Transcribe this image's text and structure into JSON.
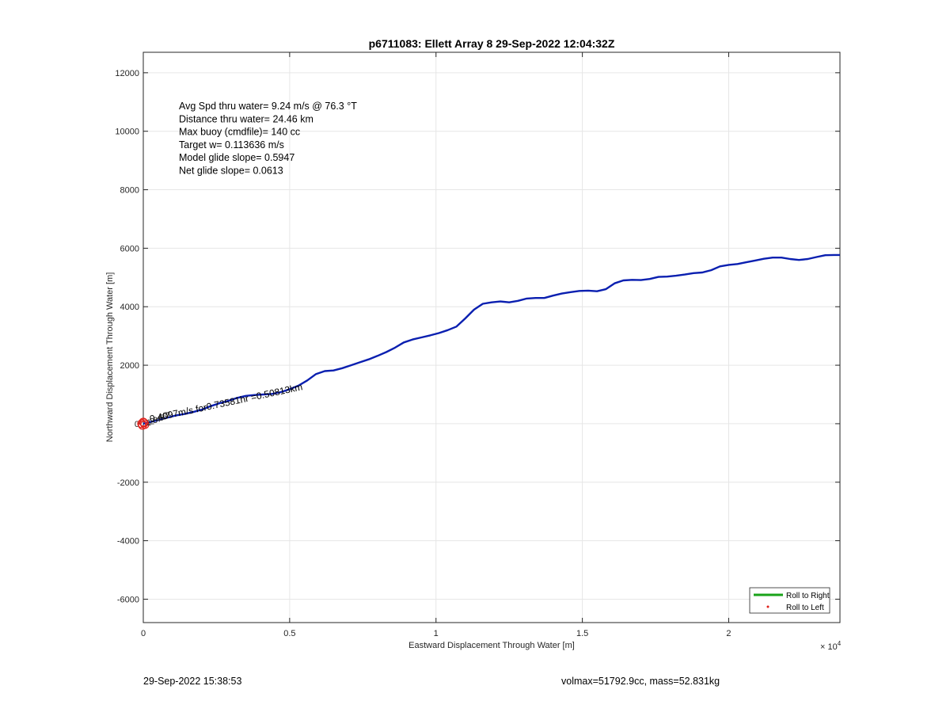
{
  "chart_data": {
    "type": "line",
    "title": "p6711083: Ellett Array 8 29-Sep-2022 12:04:32Z",
    "xlabel": "Eastward Displacement Through Water [m]",
    "ylabel": "Northward Displacement Through Water [m]",
    "x_exponent_label": "× 10",
    "x_exponent_power": "4",
    "xlim": [
      0,
      23800
    ],
    "ylim": [
      -6800,
      12700
    ],
    "xticks": [
      0,
      5000,
      10000,
      15000,
      20000
    ],
    "xtick_labels": [
      "0",
      "0.5",
      "1",
      "1.5",
      "2"
    ],
    "yticks": [
      -6000,
      -4000,
      -2000,
      0,
      2000,
      4000,
      6000,
      8000,
      10000,
      12000
    ],
    "ytick_labels": [
      "-6000",
      "-4000",
      "-2000",
      "0",
      "2000",
      "4000",
      "6000",
      "8000",
      "10000",
      "12000"
    ],
    "grid": true,
    "legend_position": "bottom-right",
    "legend": [
      {
        "label": "Roll to Right",
        "color": "#1aa31a",
        "style": "line"
      },
      {
        "label": "Roll to Left",
        "color": "#e0201a",
        "style": "dot"
      }
    ],
    "series": [
      {
        "color": "#0a1fb0",
        "x": [
          0,
          250,
          500,
          800,
          1100,
          1400,
          1700,
          2000,
          2300,
          2600,
          2900,
          3200,
          3500,
          3800,
          4100,
          4400,
          4700,
          5000,
          5300,
          5600,
          5900,
          6200,
          6500,
          6800,
          7100,
          7400,
          7700,
          8000,
          8300,
          8600,
          8900,
          9200,
          9500,
          9800,
          10100,
          10400,
          10700,
          11000,
          11300,
          11600,
          11900,
          12200,
          12500,
          12800,
          13100,
          13400,
          13700,
          14000,
          14300,
          14600,
          14900,
          15200,
          15500,
          15800,
          16100,
          16400,
          16700,
          17000,
          17300,
          17600,
          17900,
          18200,
          18500,
          18800,
          19100,
          19400,
          19700,
          20000,
          20300,
          20600,
          20900,
          21200,
          21500,
          21800,
          22100,
          22400,
          22700,
          23000,
          23300,
          23600,
          23800
        ],
        "y": [
          0,
          60,
          120,
          200,
          280,
          330,
          400,
          480,
          600,
          700,
          780,
          880,
          950,
          980,
          1000,
          1020,
          1080,
          1180,
          1300,
          1480,
          1700,
          1800,
          1820,
          1900,
          2000,
          2100,
          2200,
          2320,
          2450,
          2600,
          2780,
          2880,
          2950,
          3020,
          3100,
          3200,
          3320,
          3600,
          3900,
          4100,
          4150,
          4180,
          4150,
          4200,
          4280,
          4300,
          4300,
          4380,
          4450,
          4500,
          4540,
          4550,
          4530,
          4600,
          4800,
          4900,
          4920,
          4910,
          4950,
          5020,
          5030,
          5060,
          5100,
          5150,
          5170,
          5250,
          5380,
          5430,
          5460,
          5520,
          5580,
          5640,
          5680,
          5680,
          5630,
          5600,
          5630,
          5700,
          5760,
          5770,
          5770
        ]
      }
    ],
    "annotations": {
      "lines": [
        "Avg Spd thru water=  9.24 m/s @  76.3 °T",
        "Distance thru water= 24.46 km",
        "Max buoy (cmdfile)= 140 cc",
        "Target w= 0.113636 m/s",
        "Model glide slope= 0.5947",
        "Net glide slope= 0.0613"
      ],
      "overlap_text": "0.4097m/s for0.73581hr =0.50813km",
      "origin_labels": [
        "1",
        "2",
        "3",
        "4",
        "5",
        "6",
        "7"
      ]
    }
  },
  "footer": {
    "left": "29-Sep-2022 15:38:53",
    "right": "volmax=51792.9cc, mass=52.831kg"
  }
}
